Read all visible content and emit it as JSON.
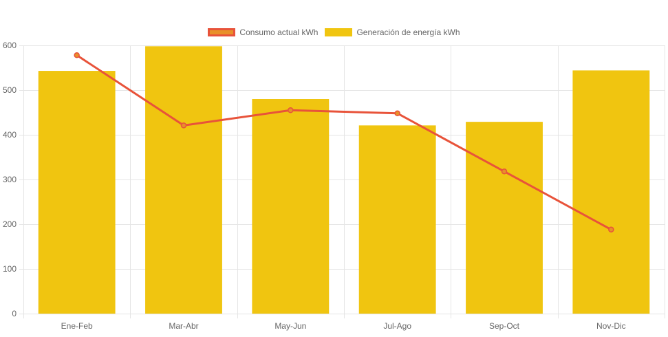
{
  "chart_data": {
    "type": "bar",
    "categories": [
      "Ene-Feb",
      "Mar-Abr",
      "May-Jun",
      "Jul-Ago",
      "Sep-Oct",
      "Nov-Dic"
    ],
    "series": [
      {
        "name": "Consumo actual kWh",
        "type": "line",
        "values": [
          578,
          421,
          455,
          448,
          318,
          188
        ],
        "color": "#e8533a",
        "point_color": "#e8902a"
      },
      {
        "name": "Generación de energía kWh",
        "type": "bar",
        "values": [
          543,
          598,
          480,
          421,
          429,
          544
        ],
        "color": "#f0c510"
      }
    ],
    "ylim": [
      0,
      600
    ],
    "yticks": [
      0,
      100,
      200,
      300,
      400,
      500,
      600
    ],
    "grid": true,
    "legend": "top-center",
    "gridColor": "#e5e5e5",
    "tickColor": "#666666"
  }
}
